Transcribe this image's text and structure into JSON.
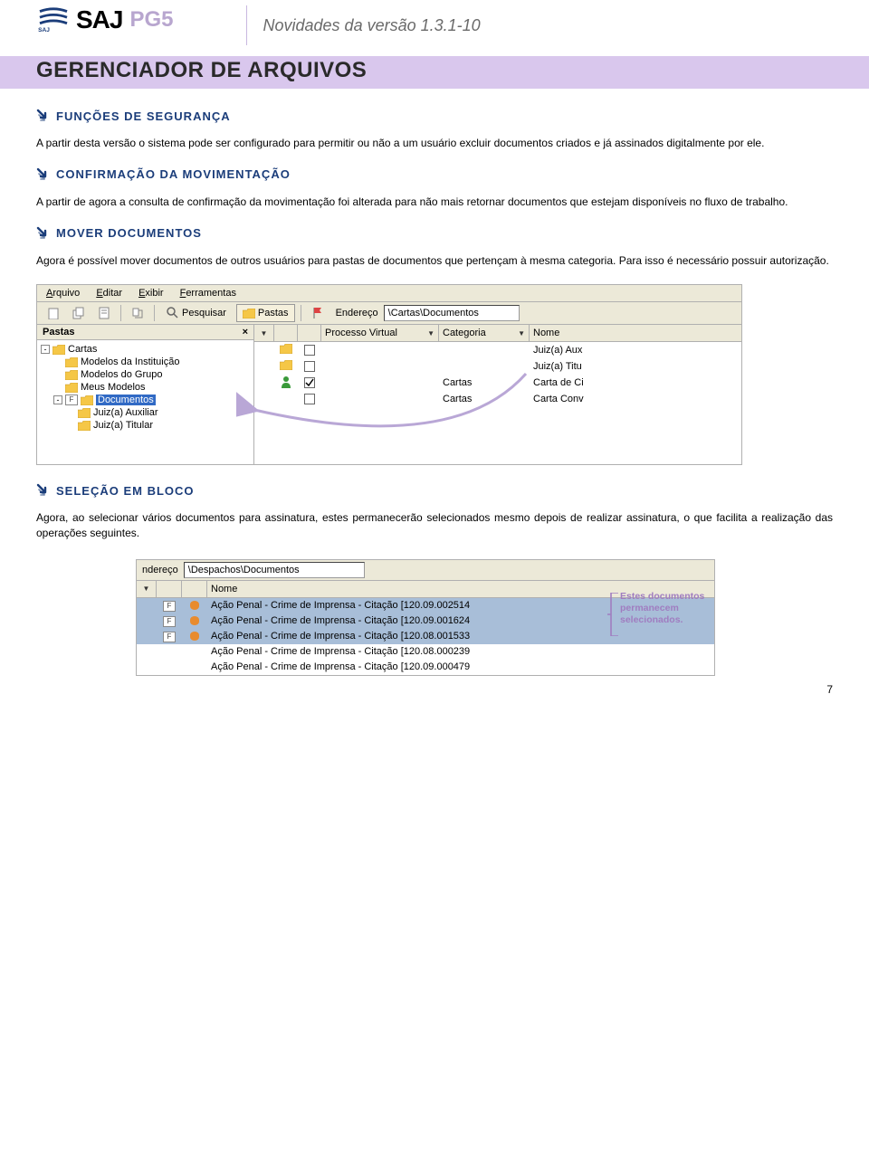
{
  "colors": {
    "accent_blue": "#1b3d7a",
    "banner_bg": "#d9c7ed",
    "pg5": "#b8a6cf",
    "version_text": "#6a6a6a",
    "ui_bg": "#ece9d8",
    "sel_row": "#a8bed8",
    "arrow": "#b9a7d6",
    "callout": "#a07dc0",
    "page_number_color": "#000000"
  },
  "header": {
    "logo_text": "SAJ",
    "logo_pg5": "PG5",
    "version_label": "Novidades da versão 1.3.1-10"
  },
  "banner": {
    "title": "GERENCIADOR DE ARQUIVOS"
  },
  "sections": [
    {
      "title": "FUNÇÕES DE SEGURANÇA",
      "body": "A partir desta versão o sistema pode ser configurado para permitir ou não a um usuário excluir documentos criados e já assinados digitalmente por ele."
    },
    {
      "title": "CONFIRMAÇÃO DA MOVIMENTAÇÃO",
      "body": "A partir de agora a consulta de confirmação da movimentação foi alterada para não mais retornar documentos que estejam disponíveis no fluxo de trabalho."
    },
    {
      "title": "MOVER DOCUMENTOS",
      "body": "Agora é possível mover documentos de outros usuários para pastas de documentos que pertençam à mesma categoria. Para isso é necessário possuir autorização."
    },
    {
      "title": "SELEÇÃO EM BLOCO",
      "body": "Agora, ao selecionar vários documentos para assinatura, estes permanecerão selecionados mesmo depois de realizar assinatura, o que facilita a realização das operações seguintes."
    }
  ],
  "screenshot1": {
    "menubar": [
      "Arquivo",
      "Editar",
      "Exibir",
      "Ferramentas"
    ],
    "toolbar": {
      "search_label": "Pesquisar",
      "folders_label": "Pastas",
      "address_label": "Endereço",
      "address_value": "\\Cartas\\Documentos"
    },
    "folders_pane": {
      "title": "Pastas",
      "close_x": "×",
      "tree": [
        {
          "indent": 0,
          "icon": "folder",
          "label": "Cartas",
          "expander": "-"
        },
        {
          "indent": 1,
          "icon": "folder",
          "label": "Modelos da Instituição"
        },
        {
          "indent": 1,
          "icon": "folder",
          "label": "Modelos do Grupo"
        },
        {
          "indent": 1,
          "icon": "folder",
          "label": "Meus Modelos"
        },
        {
          "indent": 1,
          "icon": "folder",
          "label": "Documentos",
          "fkey": "F",
          "expander": "-",
          "selected": true
        },
        {
          "indent": 2,
          "icon": "folder",
          "label": "Juiz(a) Auxiliar"
        },
        {
          "indent": 2,
          "icon": "folder",
          "label": "Juiz(a) Titular"
        }
      ]
    },
    "list": {
      "columns": [
        "",
        "",
        "",
        "Processo Virtual",
        "Categoria",
        "Nome"
      ],
      "rows": [
        {
          "icon": "folder",
          "checked": false,
          "col_c": "",
          "col_d": "",
          "col_e": "Juiz(a) Aux"
        },
        {
          "icon": "folder",
          "checked": false,
          "col_c": "",
          "col_d": "",
          "col_e": "Juiz(a) Titu"
        },
        {
          "icon": "person",
          "checked": true,
          "col_c": "",
          "col_d": "Cartas",
          "col_e": "Carta de Ci"
        },
        {
          "icon": "",
          "checked": false,
          "col_c": "",
          "col_d": "Cartas",
          "col_e": "Carta Conv"
        }
      ]
    }
  },
  "screenshot2": {
    "address_label": "ndereço",
    "address_value": "\\Despachos\\Documentos",
    "name_header": "Nome",
    "rows": [
      {
        "sel": true,
        "f": true,
        "dot": true,
        "name": "Ação Penal - Crime de Imprensa - Citação [120.09.002514"
      },
      {
        "sel": true,
        "f": true,
        "dot": true,
        "name": "Ação Penal - Crime de Imprensa - Citação [120.09.001624"
      },
      {
        "sel": true,
        "f": true,
        "dot": true,
        "name": "Ação Penal - Crime de Imprensa - Citação [120.08.001533"
      },
      {
        "sel": false,
        "f": false,
        "dot": false,
        "name": "Ação Penal - Crime de Imprensa - Citação [120.08.000239"
      },
      {
        "sel": false,
        "f": false,
        "dot": false,
        "name": "Ação Penal - Crime de Imprensa - Citação [120.09.000479"
      }
    ],
    "callout": "Estes documentos permanecem selecionados."
  },
  "page_number": "7"
}
